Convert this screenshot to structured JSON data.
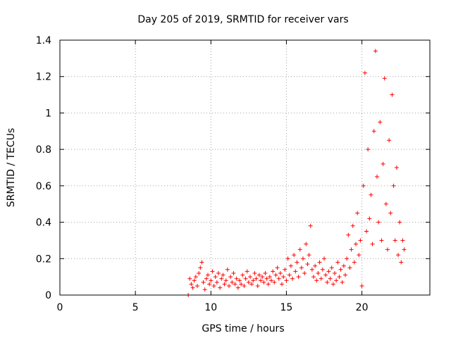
{
  "chart_data": {
    "type": "scatter",
    "title": "Day 205 of 2019, SRMTID for receiver vars",
    "xlabel": "GPS time / hours",
    "ylabel": "SRMTID / TECUs",
    "xlim": [
      0,
      24.5
    ],
    "ylim": [
      0,
      1.4
    ],
    "xticks": [
      0,
      5,
      10,
      15,
      20
    ],
    "xtick_labels": [
      "0",
      "5",
      "10",
      "15",
      "20"
    ],
    "yticks": [
      0,
      0.2,
      0.4,
      0.6,
      0.8,
      1.0,
      1.2,
      1.4
    ],
    "ytick_labels": [
      "0",
      "0.2",
      "0.4",
      "0.6",
      "0.8",
      "1",
      "1.2",
      "1.4"
    ],
    "grid": true,
    "marker": "plus",
    "color": "#ff0000",
    "series": [
      {
        "name": "SRMTID",
        "points": [
          [
            8.5,
            0.0
          ],
          [
            8.6,
            0.09
          ],
          [
            8.7,
            0.06
          ],
          [
            8.8,
            0.04
          ],
          [
            8.9,
            0.08
          ],
          [
            9.0,
            0.1
          ],
          [
            9.1,
            0.05
          ],
          [
            9.2,
            0.12
          ],
          [
            9.3,
            0.15
          ],
          [
            9.4,
            0.18
          ],
          [
            9.5,
            0.07
          ],
          [
            9.6,
            0.03
          ],
          [
            9.7,
            0.09
          ],
          [
            9.8,
            0.11
          ],
          [
            9.9,
            0.06
          ],
          [
            10.0,
            0.08
          ],
          [
            10.1,
            0.13
          ],
          [
            10.2,
            0.05
          ],
          [
            10.3,
            0.1
          ],
          [
            10.4,
            0.07
          ],
          [
            10.5,
            0.12
          ],
          [
            10.6,
            0.04
          ],
          [
            10.7,
            0.09
          ],
          [
            10.8,
            0.11
          ],
          [
            10.9,
            0.06
          ],
          [
            11.0,
            0.08
          ],
          [
            11.1,
            0.14
          ],
          [
            11.2,
            0.05
          ],
          [
            11.3,
            0.1
          ],
          [
            11.4,
            0.07
          ],
          [
            11.5,
            0.12
          ],
          [
            11.6,
            0.06
          ],
          [
            11.7,
            0.09
          ],
          [
            11.8,
            0.04
          ],
          [
            11.9,
            0.08
          ],
          [
            12.0,
            0.06
          ],
          [
            12.1,
            0.11
          ],
          [
            12.2,
            0.05
          ],
          [
            12.3,
            0.09
          ],
          [
            12.4,
            0.13
          ],
          [
            12.5,
            0.07
          ],
          [
            12.6,
            0.1
          ],
          [
            12.7,
            0.06
          ],
          [
            12.8,
            0.08
          ],
          [
            12.9,
            0.12
          ],
          [
            13.0,
            0.09
          ],
          [
            13.1,
            0.05
          ],
          [
            13.2,
            0.11
          ],
          [
            13.3,
            0.08
          ],
          [
            13.4,
            0.1
          ],
          [
            13.5,
            0.07
          ],
          [
            13.6,
            0.12
          ],
          [
            13.7,
            0.09
          ],
          [
            13.8,
            0.06
          ],
          [
            13.9,
            0.1
          ],
          [
            14.0,
            0.08
          ],
          [
            14.1,
            0.13
          ],
          [
            14.2,
            0.07
          ],
          [
            14.3,
            0.11
          ],
          [
            14.4,
            0.15
          ],
          [
            14.5,
            0.09
          ],
          [
            14.6,
            0.12
          ],
          [
            14.7,
            0.06
          ],
          [
            14.8,
            0.1
          ],
          [
            14.9,
            0.14
          ],
          [
            15.0,
            0.08
          ],
          [
            15.1,
            0.2
          ],
          [
            15.2,
            0.11
          ],
          [
            15.3,
            0.16
          ],
          [
            15.4,
            0.09
          ],
          [
            15.5,
            0.22
          ],
          [
            15.6,
            0.13
          ],
          [
            15.7,
            0.18
          ],
          [
            15.8,
            0.1
          ],
          [
            15.9,
            0.25
          ],
          [
            16.0,
            0.15
          ],
          [
            16.1,
            0.2
          ],
          [
            16.2,
            0.12
          ],
          [
            16.3,
            0.28
          ],
          [
            16.4,
            0.17
          ],
          [
            16.5,
            0.22
          ],
          [
            16.6,
            0.38
          ],
          [
            16.7,
            0.14
          ],
          [
            16.8,
            0.1
          ],
          [
            16.9,
            0.16
          ],
          [
            17.0,
            0.08
          ],
          [
            17.1,
            0.12
          ],
          [
            17.2,
            0.18
          ],
          [
            17.3,
            0.09
          ],
          [
            17.4,
            0.14
          ],
          [
            17.5,
            0.2
          ],
          [
            17.6,
            0.11
          ],
          [
            17.7,
            0.07
          ],
          [
            17.8,
            0.13
          ],
          [
            17.9,
            0.09
          ],
          [
            18.0,
            0.15
          ],
          [
            18.1,
            0.06
          ],
          [
            18.2,
            0.12
          ],
          [
            18.3,
            0.08
          ],
          [
            18.4,
            0.18
          ],
          [
            18.5,
            0.1
          ],
          [
            18.6,
            0.14
          ],
          [
            18.7,
            0.07
          ],
          [
            18.8,
            0.16
          ],
          [
            18.9,
            0.11
          ],
          [
            19.0,
            0.2
          ],
          [
            19.1,
            0.33
          ],
          [
            19.2,
            0.15
          ],
          [
            19.3,
            0.25
          ],
          [
            19.4,
            0.38
          ],
          [
            19.5,
            0.18
          ],
          [
            19.6,
            0.28
          ],
          [
            19.7,
            0.45
          ],
          [
            19.8,
            0.22
          ],
          [
            19.9,
            0.3
          ],
          [
            20.0,
            0.05
          ],
          [
            20.1,
            0.6
          ],
          [
            20.2,
            1.22
          ],
          [
            20.3,
            0.35
          ],
          [
            20.4,
            0.8
          ],
          [
            20.5,
            0.42
          ],
          [
            20.6,
            0.55
          ],
          [
            20.7,
            0.28
          ],
          [
            20.8,
            0.9
          ],
          [
            20.9,
            1.34
          ],
          [
            21.0,
            0.65
          ],
          [
            21.1,
            0.4
          ],
          [
            21.2,
            0.95
          ],
          [
            21.3,
            0.3
          ],
          [
            21.4,
            0.72
          ],
          [
            21.5,
            1.19
          ],
          [
            21.6,
            0.5
          ],
          [
            21.7,
            0.25
          ],
          [
            21.8,
            0.85
          ],
          [
            21.9,
            0.45
          ],
          [
            22.0,
            1.1
          ],
          [
            22.1,
            0.6
          ],
          [
            22.2,
            0.3
          ],
          [
            22.3,
            0.7
          ],
          [
            22.4,
            0.22
          ],
          [
            22.5,
            0.4
          ],
          [
            22.6,
            0.18
          ],
          [
            22.7,
            0.3
          ],
          [
            22.8,
            0.25
          ]
        ]
      }
    ]
  }
}
